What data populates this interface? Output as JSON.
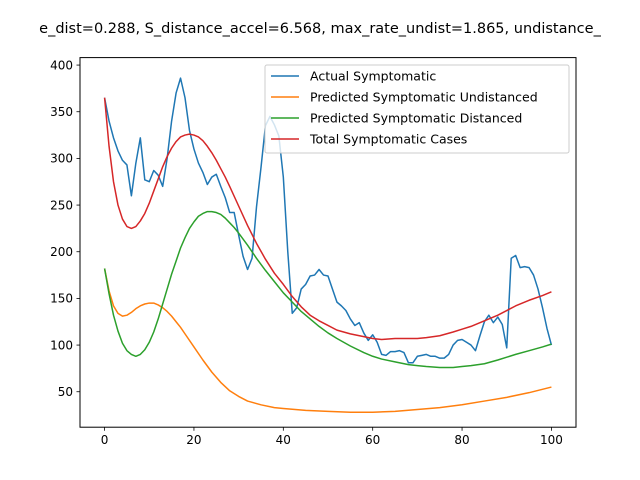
{
  "chart_data": {
    "type": "line",
    "title": "e_dist=0.288, S_distance_accel=6.568, max_rate_undist=1.865, undistance_",
    "xlabel": "",
    "ylabel": "",
    "xlim": [
      -5.5,
      105.5
    ],
    "ylim": [
      12,
      408
    ],
    "xticks": [
      0,
      20,
      40,
      60,
      80,
      100
    ],
    "yticks": [
      50,
      100,
      150,
      200,
      250,
      300,
      350,
      400
    ],
    "grid": false,
    "legend_position": "top-right",
    "series": [
      {
        "name": "Actual Symptomatic",
        "color": "#1f77b4",
        "x": [
          0,
          1,
          2,
          3,
          4,
          5,
          6,
          7,
          8,
          9,
          10,
          11,
          12,
          13,
          14,
          15,
          16,
          17,
          18,
          19,
          20,
          21,
          22,
          23,
          24,
          25,
          26,
          27,
          28,
          29,
          30,
          31,
          32,
          33,
          34,
          35,
          36,
          37,
          38,
          39,
          40,
          41,
          42,
          43,
          44,
          45,
          46,
          47,
          48,
          49,
          50,
          51,
          52,
          53,
          54,
          55,
          56,
          57,
          58,
          59,
          60,
          61,
          62,
          63,
          64,
          65,
          66,
          67,
          68,
          69,
          70,
          71,
          72,
          73,
          74,
          75,
          76,
          77,
          78,
          79,
          80,
          81,
          82,
          83,
          84,
          85,
          86,
          87,
          88,
          89,
          90,
          91,
          92,
          93,
          94,
          95,
          96,
          97,
          98,
          99,
          100
        ],
        "values": [
          365,
          340,
          322,
          308,
          298,
          293,
          260,
          295,
          322,
          277,
          275,
          287,
          282,
          270,
          300,
          340,
          370,
          386,
          365,
          330,
          310,
          295,
          285,
          272,
          280,
          283,
          270,
          258,
          242,
          242,
          218,
          195,
          181,
          193,
          248,
          290,
          335,
          345,
          336,
          324,
          280,
          200,
          134,
          140,
          160,
          165,
          174,
          175,
          181,
          175,
          174,
          160,
          146,
          142,
          137,
          128,
          121,
          124,
          113,
          105,
          111,
          103,
          90,
          89,
          93,
          93,
          94,
          92,
          81,
          81,
          88,
          89,
          90,
          88,
          88,
          86,
          86,
          90,
          100,
          105,
          106,
          103,
          100,
          94,
          110,
          125,
          132,
          124,
          130,
          122,
          97,
          193,
          196,
          183,
          184,
          183,
          175,
          160,
          140,
          118,
          100
        ]
      },
      {
        "name": "Predicted Symptomatic Undistanced",
        "color": "#ff7f0e",
        "x": [
          0,
          1,
          2,
          3,
          4,
          5,
          6,
          7,
          8,
          9,
          10,
          11,
          12,
          13,
          14,
          15,
          16,
          17,
          18,
          20,
          22,
          24,
          26,
          28,
          30,
          32,
          35,
          38,
          40,
          45,
          50,
          55,
          60,
          65,
          70,
          75,
          80,
          85,
          90,
          95,
          100
        ],
        "values": [
          182,
          158,
          142,
          134,
          131,
          132,
          135,
          139,
          142,
          144,
          145,
          145,
          143,
          140,
          136,
          131,
          125,
          119,
          112,
          98,
          84,
          71,
          60,
          51,
          45,
          40,
          36,
          33,
          32,
          30,
          29,
          28,
          28,
          29,
          31,
          33,
          36,
          40,
          44,
          49,
          55
        ]
      },
      {
        "name": "Predicted Symptomatic Distanced",
        "color": "#2ca02c",
        "x": [
          0,
          1,
          2,
          3,
          4,
          5,
          6,
          7,
          8,
          9,
          10,
          11,
          12,
          13,
          14,
          15,
          16,
          17,
          18,
          19,
          20,
          21,
          22,
          23,
          24,
          25,
          26,
          27,
          28,
          29,
          30,
          32,
          34,
          36,
          38,
          40,
          42,
          44,
          46,
          48,
          50,
          52,
          55,
          58,
          60,
          62,
          65,
          68,
          70,
          72,
          75,
          78,
          80,
          82,
          85,
          88,
          90,
          92,
          95,
          98,
          100
        ],
        "values": [
          182,
          155,
          132,
          115,
          102,
          94,
          90,
          88,
          90,
          95,
          103,
          114,
          128,
          144,
          160,
          176,
          190,
          204,
          215,
          225,
          232,
          238,
          241,
          243,
          243,
          242,
          240,
          236,
          231,
          226,
          220,
          207,
          193,
          180,
          168,
          156,
          146,
          136,
          128,
          120,
          113,
          107,
          99,
          92,
          88,
          85,
          82,
          79,
          78,
          77,
          76,
          76,
          77,
          78,
          80,
          84,
          87,
          90,
          94,
          98,
          101
        ]
      },
      {
        "name": "Total Symptomatic Cases",
        "color": "#d62728",
        "x": [
          0,
          1,
          2,
          3,
          4,
          5,
          6,
          7,
          8,
          9,
          10,
          11,
          12,
          13,
          14,
          15,
          16,
          17,
          18,
          19,
          20,
          21,
          22,
          23,
          24,
          25,
          26,
          27,
          28,
          30,
          32,
          34,
          36,
          38,
          40,
          42,
          44,
          46,
          48,
          50,
          52,
          55,
          58,
          60,
          62,
          65,
          68,
          70,
          72,
          75,
          78,
          80,
          82,
          85,
          88,
          90,
          92,
          95,
          98,
          100
        ],
        "values": [
          365,
          313,
          275,
          250,
          235,
          227,
          225,
          227,
          233,
          241,
          252,
          265,
          278,
          291,
          302,
          311,
          318,
          323,
          325,
          326,
          325,
          323,
          319,
          313,
          306,
          298,
          289,
          280,
          270,
          249,
          228,
          209,
          192,
          177,
          165,
          152,
          141,
          132,
          126,
          121,
          116,
          112,
          109,
          107,
          106,
          107,
          107,
          107,
          108,
          110,
          114,
          117,
          120,
          126,
          132,
          137,
          142,
          148,
          153,
          157
        ]
      }
    ]
  }
}
